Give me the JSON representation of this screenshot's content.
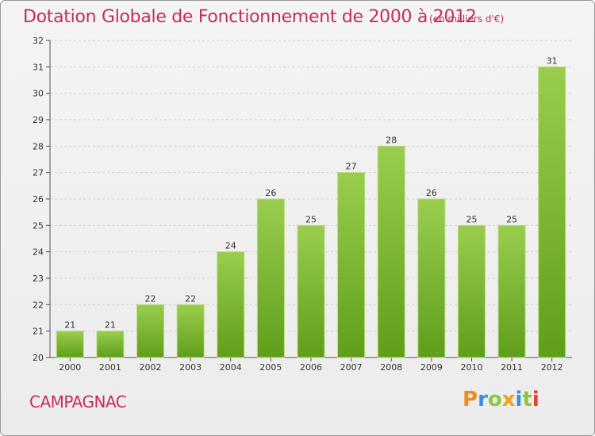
{
  "title": "Dotation Globale de Fonctionnement de 2000 à 2012",
  "units": "(en milliers d'€)",
  "commune": "CAMPAGNAC",
  "logo": {
    "text": "Proxiti",
    "letters": [
      {
        "ch": "P",
        "color": "#f08c1e"
      },
      {
        "ch": "r",
        "color": "#3a8fd8"
      },
      {
        "ch": "o",
        "color": "#8cc63f"
      },
      {
        "ch": "x",
        "color": "#f0a020"
      },
      {
        "ch": "i",
        "color": "#3a8fd8"
      },
      {
        "ch": "t",
        "color": "#8cc63f"
      },
      {
        "ch": "i",
        "color": "#e8412a"
      }
    ]
  },
  "colors": {
    "bar_top": "#9acd4e",
    "bar_bottom": "#5f9e1a",
    "title": "#c42d5c"
  },
  "chart_data": {
    "type": "bar",
    "title": "Dotation Globale de Fonctionnement de 2000 à 2012",
    "xlabel": "",
    "ylabel": "",
    "categories": [
      "2000",
      "2001",
      "2002",
      "2003",
      "2004",
      "2005",
      "2006",
      "2007",
      "2008",
      "2009",
      "2010",
      "2011",
      "2012"
    ],
    "values": [
      21,
      21,
      22,
      22,
      24,
      26,
      25,
      27,
      28,
      26,
      25,
      25,
      31
    ],
    "ylim": [
      20,
      32
    ],
    "yticks": [
      20,
      21,
      22,
      23,
      24,
      25,
      26,
      27,
      28,
      29,
      30,
      31,
      32
    ],
    "grid": true
  }
}
